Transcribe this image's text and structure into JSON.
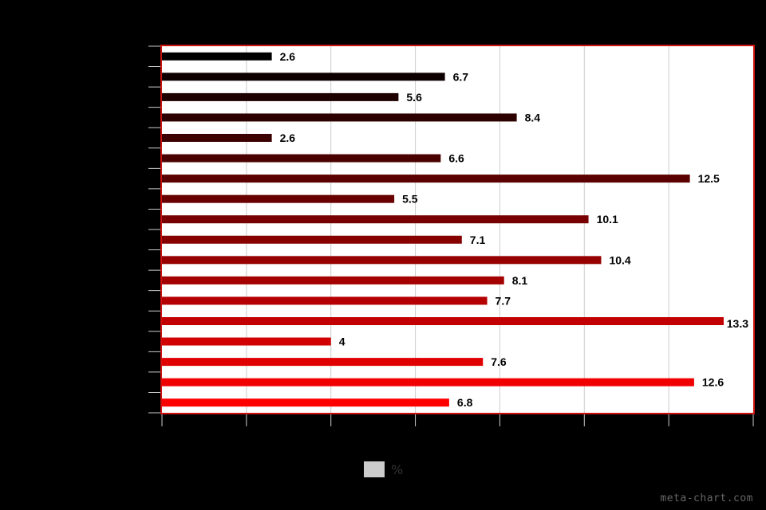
{
  "chart_data": {
    "type": "bar",
    "orientation": "horizontal",
    "title": "",
    "xlabel": "",
    "ylabel": "",
    "xlim": [
      0,
      14
    ],
    "grid": true,
    "legend_position": "bottom-center",
    "series": [
      {
        "name": "%",
        "values": [
          2.6,
          6.7,
          5.6,
          8.4,
          2.6,
          6.6,
          12.5,
          5.5,
          10.1,
          7.1,
          10.4,
          8.1,
          7.7,
          13.3,
          4,
          7.6,
          12.6,
          6.8
        ]
      }
    ],
    "data_labels": [
      "2.6",
      "6.7",
      "5.6",
      "8.4",
      "2.6",
      "6.6",
      "12.5",
      "5.5",
      "10.1",
      "7.1",
      "10.4",
      "8.1",
      "7.7",
      "13.3",
      "4",
      "7.6",
      "12.6",
      "6.8"
    ],
    "colors": {
      "bar_start": "#000000",
      "bar_end": "#ff0000",
      "plot_border": "#cc1111",
      "plot_background": "#ffffff",
      "gridline": "#cccccc",
      "legend_swatch": "#cccccc"
    }
  },
  "legend": {
    "label": "%"
  },
  "watermark": "meta-chart.com"
}
